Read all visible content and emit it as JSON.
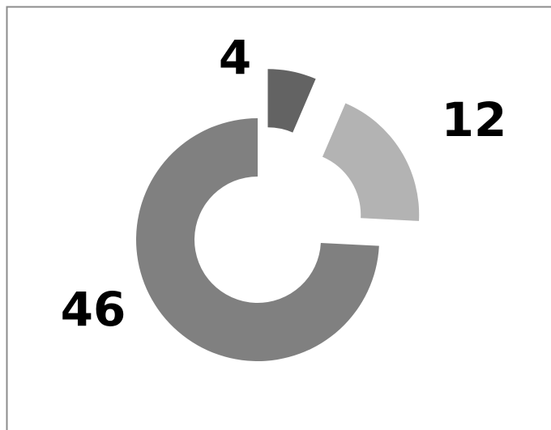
{
  "chart_data": {
    "type": "donut",
    "values": [
      4,
      12,
      46
    ],
    "colors": [
      "#636363",
      "#b3b3b3",
      "#808080"
    ]
  }
}
